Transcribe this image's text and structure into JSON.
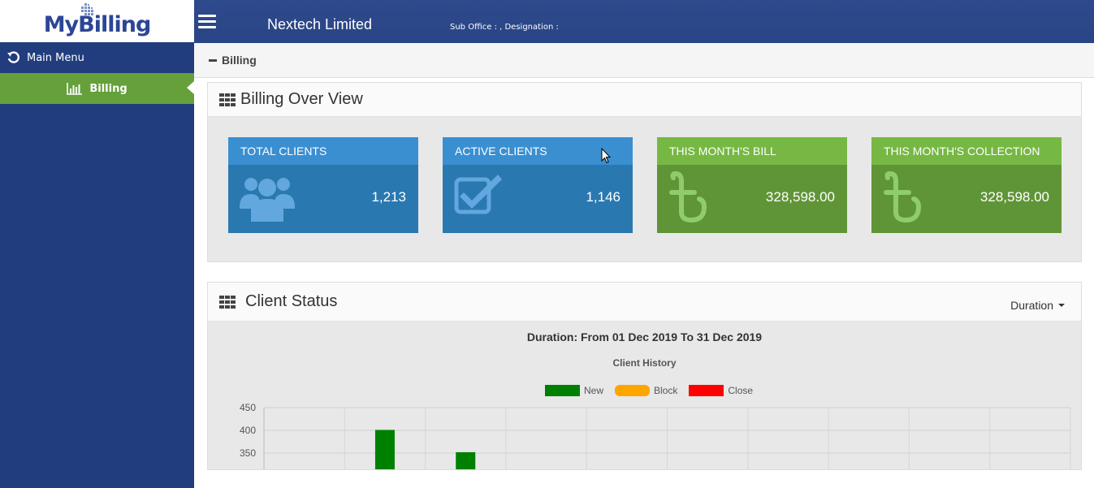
{
  "brand": {
    "logo_text": "MyBilling"
  },
  "sidebar": {
    "items": [
      {
        "label": "Main Menu",
        "icon": "undo-icon"
      },
      {
        "label": "Billing",
        "icon": "bar-chart-icon",
        "active": true
      }
    ]
  },
  "topbar": {
    "company": "Nextech Limited",
    "sub_office": "Sub Office : , Designation :"
  },
  "breadcrumb": {
    "label": "Billing"
  },
  "overview": {
    "title": "Billing Over View",
    "cards": [
      {
        "label": "TOTAL CLIENTS",
        "value": "1,213",
        "icon": "users-icon",
        "color": "#2a78b0"
      },
      {
        "label": "ACTIVE CLIENTS",
        "value": "1,146",
        "icon": "check-square-icon",
        "color": "#2a78b0"
      },
      {
        "label": "THIS MONTH'S BILL",
        "value": "328,598.00",
        "icon": "taka-icon",
        "color": "#5f9536"
      },
      {
        "label": "THIS MONTH'S COLLECTION",
        "value": "328,598.00",
        "icon": "taka-icon",
        "color": "#5f9536"
      }
    ]
  },
  "client_status": {
    "title": "Client Status",
    "duration_label": "Duration",
    "range_text": "Duration: From 01 Dec 2019 To 31 Dec 2019",
    "chart_title": "Client History",
    "legend": [
      {
        "name": "New",
        "color": "#008000"
      },
      {
        "name": "Block",
        "color": "#ffa500"
      },
      {
        "name": "Close",
        "color": "#ff0000"
      }
    ]
  },
  "chart_data": {
    "type": "bar",
    "title": "Client History",
    "y_ticks": [
      450,
      400,
      350
    ],
    "ylim_visible": [
      300,
      450
    ],
    "series": [
      {
        "name": "New",
        "color": "#008000",
        "values": [
          null,
          401,
          352,
          null,
          null,
          null,
          null,
          null,
          null,
          null
        ]
      },
      {
        "name": "Block",
        "color": "#ffa500",
        "values": []
      },
      {
        "name": "Close",
        "color": "#ff0000",
        "values": []
      }
    ],
    "category_count": 10
  }
}
